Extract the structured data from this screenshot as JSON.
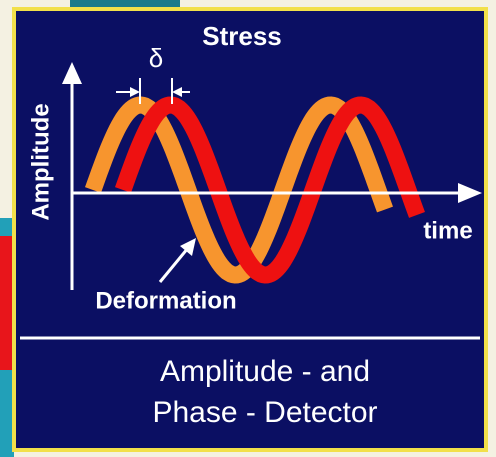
{
  "diagram": {
    "stress_label": "Stress",
    "delta_label": "δ",
    "y_axis_label": "Amplitude",
    "x_axis_label": "time",
    "deformation_label": "Deformation",
    "caption_line1": "Amplitude - and",
    "caption_line2": "Phase - Detector"
  }
}
